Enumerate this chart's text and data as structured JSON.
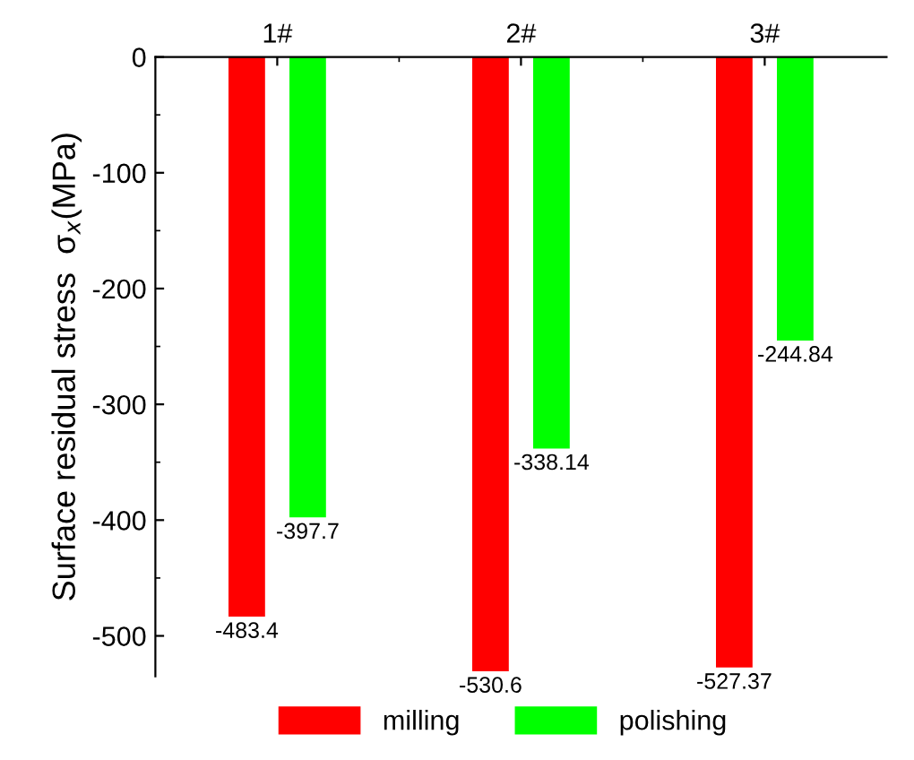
{
  "chart_data": {
    "type": "bar",
    "categories": [
      "1#",
      "2#",
      "3#"
    ],
    "ylabel": "Surface residual stress  σ$_{x}$(MPa)",
    "series": [
      {
        "name": "milling",
        "color": "#ff0000",
        "values": [
          -483.4,
          -530.6,
          -527.37
        ]
      },
      {
        "name": "polishing",
        "color": "#00ff00",
        "values": [
          -397.7,
          -338.14,
          -244.84
        ]
      }
    ],
    "ylim": [
      -535,
      0
    ],
    "yticks": [
      -500,
      -400,
      -300,
      -200,
      -100,
      0
    ],
    "data_labels": true,
    "legend": "bottom",
    "grid": false
  }
}
